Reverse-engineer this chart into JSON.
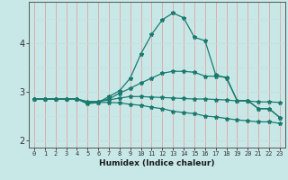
{
  "title": "",
  "xlabel": "Humidex (Indice chaleur)",
  "ylabel": "",
  "background_color": "#c8e8e8",
  "line_color": "#1a7a6e",
  "grid_color_v": "#e8a0a0",
  "grid_color_h": "#c8dede",
  "x_values": [
    0,
    1,
    2,
    3,
    4,
    5,
    6,
    7,
    8,
    9,
    10,
    11,
    12,
    13,
    14,
    15,
    16,
    17,
    18,
    19,
    20,
    21,
    22,
    23
  ],
  "series1": [
    2.85,
    2.85,
    2.85,
    2.85,
    2.85,
    2.75,
    2.78,
    2.9,
    3.02,
    3.28,
    3.78,
    4.18,
    4.48,
    4.62,
    4.52,
    4.12,
    4.05,
    3.35,
    3.28,
    2.82,
    2.82,
    2.65,
    2.65,
    2.47
  ],
  "series2": [
    2.85,
    2.85,
    2.85,
    2.85,
    2.85,
    2.78,
    2.8,
    2.85,
    2.97,
    3.07,
    3.18,
    3.28,
    3.38,
    3.42,
    3.42,
    3.4,
    3.32,
    3.32,
    3.3,
    2.82,
    2.82,
    2.65,
    2.65,
    2.47
  ],
  "series3": [
    2.85,
    2.85,
    2.85,
    2.85,
    2.85,
    2.8,
    2.8,
    2.83,
    2.87,
    2.9,
    2.9,
    2.89,
    2.88,
    2.87,
    2.86,
    2.85,
    2.85,
    2.84,
    2.83,
    2.81,
    2.81,
    2.79,
    2.79,
    2.78
  ],
  "series4": [
    2.85,
    2.85,
    2.85,
    2.85,
    2.85,
    2.78,
    2.78,
    2.78,
    2.77,
    2.74,
    2.72,
    2.68,
    2.65,
    2.6,
    2.57,
    2.55,
    2.5,
    2.48,
    2.45,
    2.42,
    2.4,
    2.38,
    2.38,
    2.35
  ],
  "ylim": [
    1.85,
    4.85
  ],
  "yticks": [
    2,
    3,
    4
  ],
  "xlim": [
    -0.5,
    23.5
  ]
}
